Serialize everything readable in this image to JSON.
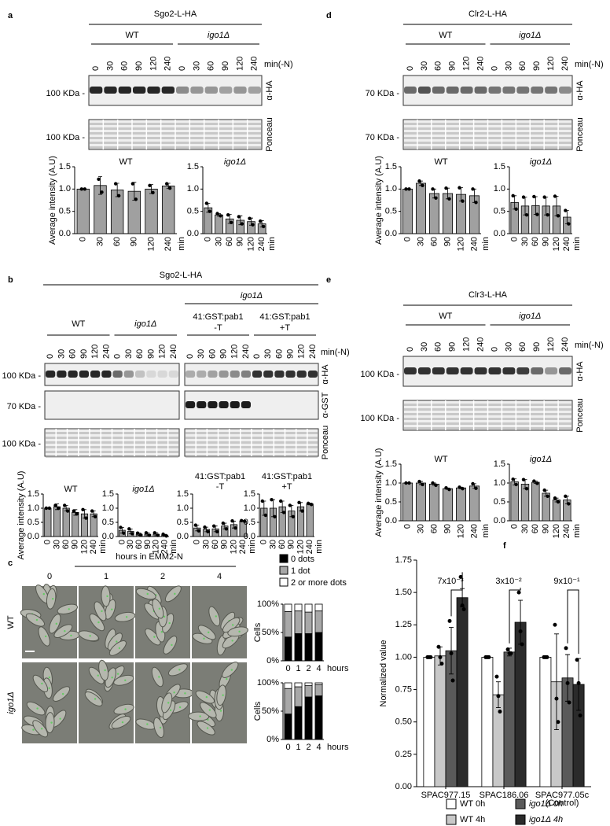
{
  "panels": [
    {
      "label": "a",
      "title": "Sgo2-L-HA",
      "groups": [
        {
          "name": "WT"
        },
        {
          "name": "igo1Δ"
        }
      ],
      "lanes": [
        "0",
        "30",
        "60",
        "90",
        "120",
        "240"
      ],
      "lane_unit": "min(-N)",
      "blots": [
        {
          "marker": "100 KDa -",
          "label": "α-HA"
        },
        {
          "marker": "100 KDa -",
          "label": "Ponceau"
        }
      ]
    },
    {
      "label": "b",
      "title": "Sgo2-L-HA",
      "header": "igo1Δ",
      "groups": [
        {
          "name": "WT"
        },
        {
          "name": "igo1Δ"
        },
        {
          "name": "41:GST:pab1",
          "sub": "-T"
        },
        {
          "name": "41:GST:pab1",
          "sub": "+T"
        }
      ],
      "lanes": [
        "0",
        "30",
        "60",
        "90",
        "120",
        "240"
      ],
      "lane_unit": "min(-N)",
      "blots": [
        {
          "marker": "100 KDa -",
          "label": "α-HA"
        },
        {
          "marker": "70 KDa -",
          "label": "α-GST"
        },
        {
          "marker": "100 KDa -",
          "label": "Ponceau"
        }
      ]
    },
    {
      "label": "c",
      "title": "hours in EMM2-N",
      "columns": [
        "0",
        "1",
        "2",
        "4"
      ],
      "rows": [
        "WT",
        "igo1Δ"
      ]
    },
    {
      "label": "d",
      "title": "Clr2-L-HA",
      "groups": [
        {
          "name": "WT"
        },
        {
          "name": "igo1Δ"
        }
      ],
      "lanes": [
        "0",
        "30",
        "60",
        "90",
        "120",
        "240"
      ],
      "lane_unit": "min(-N)",
      "blots": [
        {
          "marker": "70 KDa -",
          "label": "α-HA"
        },
        {
          "marker": "70 KDa -",
          "label": "Ponceau"
        }
      ]
    },
    {
      "label": "e",
      "title": "Clr3-L-HA",
      "groups": [
        {
          "name": "WT"
        },
        {
          "name": "igo1Δ"
        }
      ],
      "lanes": [
        "0",
        "30",
        "60",
        "90",
        "120",
        "240"
      ],
      "lane_unit": "min(-N)",
      "blots": [
        {
          "marker": "100 KDa -",
          "label": "α-HA"
        },
        {
          "marker": "100 KDa -",
          "label": "Ponceau"
        }
      ]
    },
    {
      "label": "f"
    }
  ],
  "chart_data": [
    {
      "type": "bar",
      "title": "WT",
      "ylabel": "Average intensity (A.U)",
      "xlabel": "min",
      "categories": [
        "0",
        "30",
        "60",
        "90",
        "120",
        "240"
      ],
      "values": [
        1.0,
        1.08,
        0.98,
        0.95,
        1.0,
        1.07
      ],
      "errors": [
        0.01,
        0.2,
        0.15,
        0.2,
        0.1,
        0.06
      ],
      "points": [
        [
          1.0,
          1.0
        ],
        [
          1.22,
          0.93
        ],
        [
          1.12,
          0.85
        ],
        [
          1.12,
          0.77
        ],
        [
          1.08,
          0.92
        ],
        [
          1.12,
          1.02
        ]
      ],
      "color": "#a0a0a0",
      "ylim": [
        0,
        1.5
      ],
      "yticks": [
        {
          "value": 0,
          "label": "0.0"
        },
        {
          "value": 0.5,
          "label": "0.5"
        },
        {
          "value": 1,
          "label": "1.0"
        },
        {
          "value": 1.5,
          "label": "1.5"
        }
      ]
    },
    {
      "type": "bar",
      "title": "igo1Δ",
      "xlabel": "min",
      "categories": [
        "0",
        "30",
        "60",
        "90",
        "120",
        "240"
      ],
      "values": [
        0.58,
        0.42,
        0.33,
        0.3,
        0.27,
        0.22
      ],
      "errors": [
        0.1,
        0.03,
        0.1,
        0.1,
        0.08,
        0.07
      ],
      "points": [
        [
          0.68,
          0.5
        ],
        [
          0.45,
          0.4
        ],
        [
          0.42,
          0.25
        ],
        [
          0.38,
          0.22
        ],
        [
          0.34,
          0.2
        ],
        [
          0.28,
          0.16
        ]
      ],
      "color": "#a0a0a0",
      "ylim": [
        0,
        1.5
      ],
      "yticks": [
        {
          "value": 0,
          "label": "0.0"
        },
        {
          "value": 0.5,
          "label": "0.5"
        },
        {
          "value": 1,
          "label": "1.0"
        },
        {
          "value": 1.5,
          "label": "1.5"
        }
      ]
    },
    {
      "type": "bar",
      "title": "WT",
      "ylabel": "Average intensity (A.U)",
      "xlabel": "min",
      "categories": [
        "0",
        "30",
        "60",
        "90",
        "120",
        "240"
      ],
      "values": [
        1.0,
        1.05,
        1.0,
        0.85,
        0.8,
        0.8
      ],
      "errors": [
        0.02,
        0.1,
        0.1,
        0.1,
        0.15,
        0.1
      ],
      "points": [
        [
          1.0,
          1.0
        ],
        [
          1.1,
          1.0
        ],
        [
          1.1,
          0.9
        ],
        [
          0.9,
          0.8
        ],
        [
          0.95,
          0.65
        ],
        [
          0.9,
          0.7
        ]
      ],
      "color": "#a0a0a0",
      "ylim": [
        0,
        1.5
      ],
      "yticks": [
        {
          "value": 0,
          "label": "0.0"
        },
        {
          "value": 0.5,
          "label": "0.5"
        },
        {
          "value": 1,
          "label": "1.0"
        },
        {
          "value": 1.5,
          "label": "1.5"
        }
      ]
    },
    {
      "type": "bar",
      "title": "igo1Δ",
      "xlabel": "min",
      "categories": [
        "0",
        "30",
        "60",
        "90",
        "120",
        "240"
      ],
      "values": [
        0.22,
        0.18,
        0.08,
        0.08,
        0.08,
        0.05
      ],
      "errors": [
        0.1,
        0.08,
        0.04,
        0.05,
        0.05,
        0.03
      ],
      "points": [
        [
          0.32,
          0.12
        ],
        [
          0.27,
          0.1
        ],
        [
          0.12,
          0.05
        ],
        [
          0.13,
          0.04
        ],
        [
          0.13,
          0.04
        ],
        [
          0.08,
          0.02
        ]
      ],
      "color": "#a0a0a0",
      "ylim": [
        0,
        1.5
      ],
      "yticks": [
        {
          "value": 0,
          "label": "0.0"
        },
        {
          "value": 0.5,
          "label": "0.5"
        },
        {
          "value": 1,
          "label": "1.0"
        },
        {
          "value": 1.5,
          "label": "1.5"
        }
      ]
    },
    {
      "type": "bar",
      "title": "41:GST:pab1",
      "subtitle": "-T",
      "xlabel": "min",
      "categories": [
        "0",
        "30",
        "60",
        "90",
        "120",
        "240"
      ],
      "values": [
        0.3,
        0.25,
        0.27,
        0.37,
        0.42,
        0.55
      ],
      "errors": [
        0.1,
        0.08,
        0.1,
        0.1,
        0.12,
        0.02
      ],
      "points": [
        [
          0.4,
          0.2
        ],
        [
          0.33,
          0.17
        ],
        [
          0.37,
          0.17
        ],
        [
          0.47,
          0.27
        ],
        [
          0.55,
          0.3
        ],
        [
          0.56,
          0.54
        ]
      ],
      "color": "#a0a0a0",
      "ylim": [
        0,
        1.5
      ],
      "yticks": [
        {
          "value": 0,
          "label": "0.0"
        },
        {
          "value": 0.5,
          "label": "0.5"
        },
        {
          "value": 1,
          "label": "1.0"
        },
        {
          "value": 1.5,
          "label": "1.5"
        }
      ]
    },
    {
      "type": "bar",
      "title": "41:GST:pab1",
      "subtitle": "+T",
      "xlabel": "min",
      "categories": [
        "0",
        "30",
        "60",
        "90",
        "120",
        "240"
      ],
      "values": [
        1.0,
        1.0,
        1.05,
        0.9,
        1.05,
        1.15
      ],
      "errors": [
        0.25,
        0.3,
        0.2,
        0.2,
        0.15,
        0.03
      ],
      "points": [
        [
          1.25,
          0.75
        ],
        [
          1.3,
          0.7
        ],
        [
          1.25,
          0.85
        ],
        [
          1.1,
          0.7
        ],
        [
          1.2,
          0.9
        ],
        [
          1.17,
          1.13
        ]
      ],
      "color": "#a0a0a0",
      "ylim": [
        0,
        1.5
      ],
      "yticks": [
        {
          "value": 0,
          "label": "0.0"
        },
        {
          "value": 0.5,
          "label": "0.5"
        },
        {
          "value": 1,
          "label": "1.0"
        },
        {
          "value": 1.5,
          "label": "1.5"
        }
      ]
    },
    {
      "type": "stacked_bar",
      "ylabel": "Cells",
      "xlabel": "hours",
      "categories": [
        "0",
        "1",
        "2",
        "4"
      ],
      "series": [
        {
          "name": "0 dots",
          "color": "#000000",
          "values": [
            [
              42,
              48,
              48,
              50
            ],
            [
              45,
              58,
              75,
              77
            ]
          ]
        },
        {
          "name": "1 dot",
          "color": "#a8a8a8",
          "values": [
            [
              45,
              40,
              38,
              38
            ],
            [
              45,
              35,
              20,
              20
            ]
          ]
        },
        {
          "name": "2 or more dots",
          "color": "#ffffff",
          "values": [
            [
              13,
              12,
              14,
              12
            ],
            [
              10,
              7,
              5,
              3
            ]
          ]
        }
      ],
      "ylim": [
        0,
        100
      ],
      "yticks": [
        {
          "value": 0,
          "label": "0%"
        },
        {
          "value": 50,
          "label": "50%"
        },
        {
          "value": 100,
          "label": "100%"
        }
      ]
    },
    {
      "type": "bar",
      "title": "WT",
      "ylabel": "Average intensity (A.U)",
      "xlabel": "min",
      "categories": [
        "0",
        "30",
        "60",
        "90",
        "120",
        "240"
      ],
      "values": [
        1.0,
        1.13,
        0.9,
        0.9,
        0.88,
        0.85
      ],
      "errors": [
        0.01,
        0.05,
        0.1,
        0.12,
        0.15,
        0.15
      ],
      "points": [
        [
          1.0,
          1.0
        ],
        [
          1.18,
          1.08
        ],
        [
          1.0,
          0.8
        ],
        [
          1.02,
          0.78
        ],
        [
          1.03,
          0.73
        ],
        [
          1.0,
          0.7
        ]
      ],
      "color": "#a0a0a0",
      "ylim": [
        0,
        1.5
      ],
      "yticks": [
        {
          "value": 0,
          "label": "0.0"
        },
        {
          "value": 0.5,
          "label": "0.5"
        },
        {
          "value": 1,
          "label": "1.0"
        },
        {
          "value": 1.5,
          "label": "1.5"
        }
      ]
    },
    {
      "type": "bar",
      "title": "igo1Δ",
      "xlabel": "min",
      "categories": [
        "0",
        "30",
        "60",
        "90",
        "120",
        "240"
      ],
      "values": [
        0.7,
        0.62,
        0.63,
        0.62,
        0.62,
        0.37
      ],
      "errors": [
        0.15,
        0.2,
        0.2,
        0.2,
        0.22,
        0.15
      ],
      "points": [
        [
          0.85,
          0.55
        ],
        [
          0.82,
          0.42
        ],
        [
          0.83,
          0.43
        ],
        [
          0.82,
          0.42
        ],
        [
          0.84,
          0.4
        ],
        [
          0.52,
          0.22
        ]
      ],
      "color": "#a0a0a0",
      "ylim": [
        0,
        1.5
      ],
      "yticks": [
        {
          "value": 0,
          "label": "0.0"
        },
        {
          "value": 0.5,
          "label": "0.5"
        },
        {
          "value": 1,
          "label": "1.0"
        },
        {
          "value": 1.5,
          "label": "1.5"
        }
      ]
    },
    {
      "type": "bar",
      "title": "WT",
      "ylabel": "Average intensity (A.U)",
      "xlabel": "min",
      "categories": [
        "0",
        "30",
        "60",
        "90",
        "120",
        "240"
      ],
      "values": [
        1.0,
        1.0,
        0.97,
        0.85,
        0.87,
        0.92
      ],
      "errors": [
        0.01,
        0.04,
        0.03,
        0.02,
        0.02,
        0.06
      ],
      "points": [
        [
          1.0,
          1.0
        ],
        [
          1.04,
          0.96
        ],
        [
          1.0,
          0.94
        ],
        [
          0.87,
          0.83
        ],
        [
          0.89,
          0.85
        ],
        [
          0.98,
          0.86
        ]
      ],
      "color": "#a0a0a0",
      "ylim": [
        0,
        1.5
      ],
      "yticks": [
        {
          "value": 0,
          "label": "0.0"
        },
        {
          "value": 0.5,
          "label": "0.5"
        },
        {
          "value": 1,
          "label": "1.0"
        },
        {
          "value": 1.5,
          "label": "1.5"
        }
      ]
    },
    {
      "type": "bar",
      "title": "igo1Δ",
      "xlabel": "min",
      "categories": [
        "0",
        "30",
        "60",
        "90",
        "120",
        "240"
      ],
      "values": [
        1.03,
        0.97,
        1.02,
        0.73,
        0.55,
        0.55
      ],
      "errors": [
        0.08,
        0.12,
        0.03,
        0.08,
        0.05,
        0.1
      ],
      "points": [
        [
          1.1,
          0.96
        ],
        [
          1.09,
          0.85
        ],
        [
          1.05,
          0.99
        ],
        [
          0.81,
          0.65
        ],
        [
          0.6,
          0.5
        ],
        [
          0.65,
          0.45
        ]
      ],
      "color": "#a0a0a0",
      "ylim": [
        0,
        1.5
      ],
      "yticks": [
        {
          "value": 0,
          "label": "0.0"
        },
        {
          "value": 0.5,
          "label": "0.5"
        },
        {
          "value": 1,
          "label": "1.0"
        },
        {
          "value": 1.5,
          "label": "1.5"
        }
      ]
    },
    {
      "type": "grouped_bar",
      "ylabel": "Normalized value",
      "categories": [
        "SPAC977.15",
        "SPAC186.06",
        "SPAC977.05c"
      ],
      "category_notes": [
        null,
        null,
        "(Control)"
      ],
      "pvalues": [
        "7x10⁻³",
        "3x10⁻²",
        "9x10⁻¹"
      ],
      "pvalue_colors": [
        "#e8251f",
        "#f28c1c",
        "#2fd12f"
      ],
      "series": [
        {
          "name": "WT 0h",
          "color": "#ffffff",
          "values": [
            1.0,
            1.0,
            1.0
          ],
          "errors": [
            0,
            0,
            0
          ],
          "points": [
            [
              1.0,
              1.0,
              1.0
            ],
            [
              1.0,
              1.0,
              1.0
            ],
            [
              1.0,
              1.0,
              1.0
            ]
          ]
        },
        {
          "name": "WT 4h",
          "color": "#c8c8c8",
          "values": [
            1.01,
            0.71,
            0.81
          ],
          "errors": [
            0.07,
            0.1,
            0.37
          ],
          "points": [
            [
              1.08,
              1.0,
              0.95
            ],
            [
              0.85,
              0.7,
              0.58
            ],
            [
              1.25,
              0.68,
              0.5
            ]
          ]
        },
        {
          "name": "igo1Δ 0h",
          "color": "#5a5a5a",
          "values": [
            1.05,
            1.04,
            0.84
          ],
          "errors": [
            0.18,
            0.03,
            0.18
          ],
          "points": [
            [
              1.28,
              1.03,
              0.82
            ],
            [
              1.06,
              1.03,
              1.03
            ],
            [
              1.07,
              0.8,
              0.65
            ]
          ]
        },
        {
          "name": "igo1Δ 4h",
          "color": "#2b2b2b",
          "values": [
            1.46,
            1.27,
            0.79
          ],
          "errors": [
            0.07,
            0.17,
            0.2
          ],
          "points": [
            [
              1.62,
              1.4,
              1.37
            ],
            [
              1.5,
              1.2,
              1.1
            ],
            [
              0.98,
              0.8,
              0.55
            ]
          ]
        }
      ],
      "ylim": [
        0,
        1.75
      ],
      "yticks": [
        {
          "value": 0,
          "label": "0.00"
        },
        {
          "value": 0.25,
          "label": "0.25"
        },
        {
          "value": 0.5,
          "label": "0.50"
        },
        {
          "value": 0.75,
          "label": "0.75"
        },
        {
          "value": 1,
          "label": "1.00"
        },
        {
          "value": 1.25,
          "label": "1.25"
        },
        {
          "value": 1.5,
          "label": "1.50"
        },
        {
          "value": 1.75,
          "label": "1.75"
        }
      ]
    }
  ]
}
